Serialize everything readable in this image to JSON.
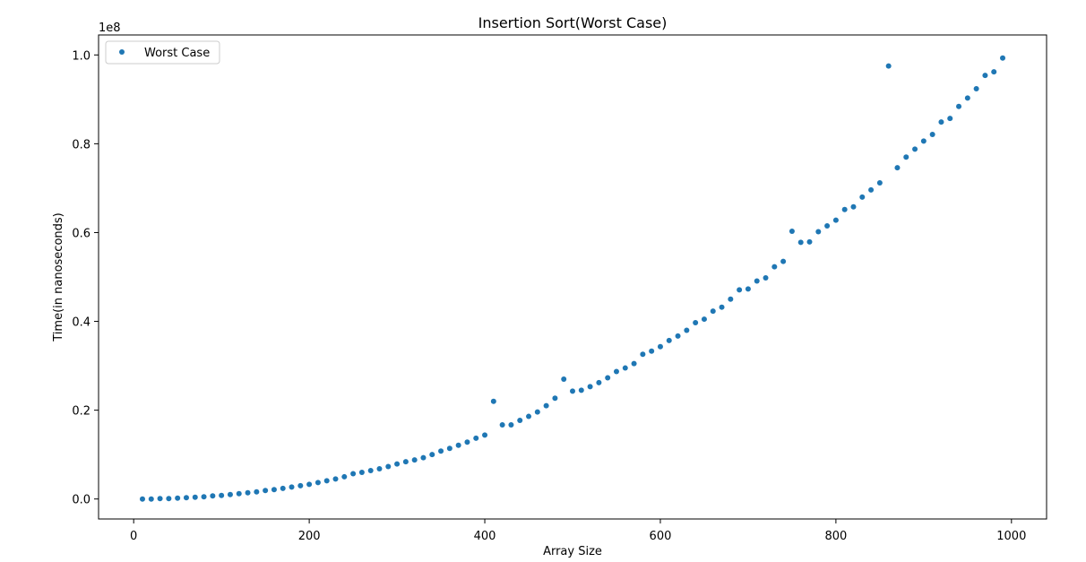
{
  "chart_data": {
    "type": "scatter",
    "title": "Insertion Sort(Worst Case)",
    "xlabel": "Array Size",
    "ylabel": "Time(in nanoseconds)",
    "y_scale_label": "1e8",
    "y_scale": 100000000,
    "xlim": [
      -40,
      1040
    ],
    "ylim": [
      -0.045,
      1.045
    ],
    "xticks": [
      0,
      200,
      400,
      600,
      800,
      1000
    ],
    "xtick_labels": [
      "0",
      "200",
      "400",
      "600",
      "800",
      "1000"
    ],
    "yticks": [
      0.0,
      0.2,
      0.4,
      0.6,
      0.8,
      1.0
    ],
    "ytick_labels": [
      "0.0",
      "0.2",
      "0.4",
      "0.6",
      "0.8",
      "1.0"
    ],
    "grid": false,
    "legend_position": "top-left",
    "series": [
      {
        "name": "Worst Case",
        "color": "#1f77b4",
        "x": [
          10,
          20,
          30,
          40,
          50,
          60,
          70,
          80,
          90,
          100,
          110,
          120,
          130,
          140,
          150,
          160,
          170,
          180,
          190,
          200,
          210,
          220,
          230,
          240,
          250,
          260,
          270,
          280,
          290,
          300,
          310,
          320,
          330,
          340,
          350,
          360,
          370,
          380,
          390,
          400,
          410,
          420,
          430,
          440,
          450,
          460,
          470,
          480,
          490,
          500,
          510,
          520,
          530,
          540,
          550,
          560,
          570,
          580,
          590,
          600,
          610,
          620,
          630,
          640,
          650,
          660,
          670,
          680,
          690,
          700,
          710,
          720,
          730,
          740,
          750,
          760,
          770,
          780,
          790,
          800,
          810,
          820,
          830,
          840,
          850,
          860,
          870,
          880,
          890,
          900,
          910,
          920,
          930,
          940,
          950,
          960,
          970,
          980,
          990
        ],
        "y": [
          0.0,
          0.0,
          0.001,
          0.001,
          0.002,
          0.003,
          0.004,
          0.005,
          0.007,
          0.008,
          0.01,
          0.012,
          0.014,
          0.016,
          0.019,
          0.021,
          0.024,
          0.027,
          0.03,
          0.033,
          0.037,
          0.041,
          0.045,
          0.05,
          0.057,
          0.06,
          0.064,
          0.068,
          0.073,
          0.079,
          0.084,
          0.088,
          0.093,
          0.1,
          0.108,
          0.114,
          0.121,
          0.128,
          0.137,
          0.144,
          0.22,
          0.167,
          0.167,
          0.177,
          0.186,
          0.196,
          0.21,
          0.227,
          0.27,
          0.243,
          0.245,
          0.253,
          0.262,
          0.273,
          0.287,
          0.295,
          0.305,
          0.326,
          0.333,
          0.343,
          0.357,
          0.367,
          0.38,
          0.397,
          0.405,
          0.423,
          0.432,
          0.45,
          0.471,
          0.473,
          0.491,
          0.498,
          0.523,
          0.535,
          0.603,
          0.578,
          0.579,
          0.602,
          0.615,
          0.628,
          0.652,
          0.658,
          0.68,
          0.696,
          0.712,
          0.975,
          0.746,
          0.77,
          0.788,
          0.806,
          0.821,
          0.849,
          0.857,
          0.884,
          0.903,
          0.924,
          0.954,
          0.962,
          0.993
        ]
      }
    ]
  }
}
